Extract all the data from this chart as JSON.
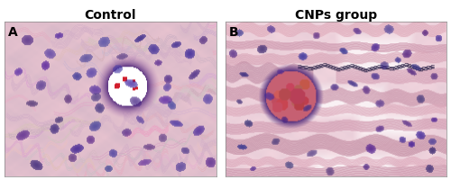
{
  "title_left": "Control",
  "title_right": "CNPs group",
  "label_left": "A",
  "label_right": "B",
  "bg_color": "#ffffff",
  "title_fontsize": 10,
  "label_fontsize": 10,
  "fig_width": 5.0,
  "fig_height": 2.01,
  "dpi": 100,
  "border_color": "#888888",
  "border_width": 0.5
}
